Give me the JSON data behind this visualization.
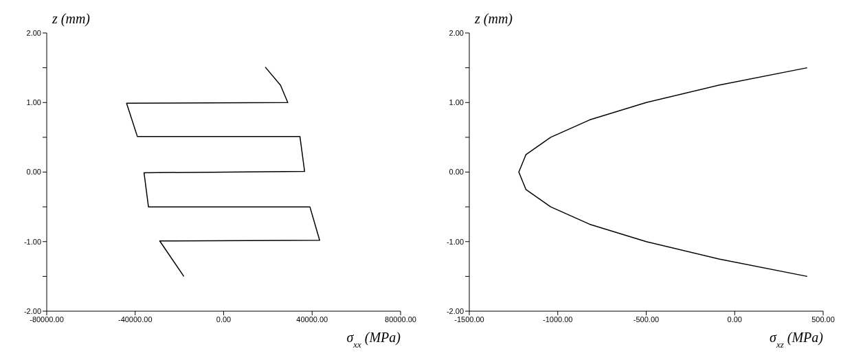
{
  "chart_data": [
    {
      "type": "line",
      "xlabel": "σ$_{xx}$ (MPa)",
      "ylabel": "z (mm)",
      "xlim": [
        -80000,
        80000
      ],
      "ylim": [
        -2,
        2
      ],
      "xticks": [
        {
          "value": -80000,
          "label": "-80000.00"
        },
        {
          "value": -40000,
          "label": "-40000.00"
        },
        {
          "value": 0,
          "label": "0.00"
        },
        {
          "value": 40000,
          "label": "40000.00"
        },
        {
          "value": 80000,
          "label": "80000.00"
        }
      ],
      "yticks": [
        {
          "value": -2,
          "label": "-2.00"
        },
        {
          "value": -1.5,
          "label": null
        },
        {
          "value": -1,
          "label": "-1.00"
        },
        {
          "value": -0.5,
          "label": null
        },
        {
          "value": 0,
          "label": "0.00"
        },
        {
          "value": 0.5,
          "label": null
        },
        {
          "value": 1,
          "label": "1.00"
        },
        {
          "value": 1.5,
          "label": null
        },
        {
          "value": 2,
          "label": "2.00"
        }
      ],
      "series": [
        {
          "color": "#000000",
          "x": [
            18800,
            25700,
            29000,
            -43900,
            -39000,
            34500,
            36600,
            -36000,
            -34000,
            39000,
            43400,
            -28900,
            -18000
          ],
          "values": [
            1.51,
            1.25,
            1.0,
            0.99,
            0.51,
            0.51,
            0.01,
            -0.01,
            -0.5,
            -0.5,
            -0.98,
            -0.99,
            -1.5
          ]
        }
      ]
    },
    {
      "type": "line",
      "xlabel": "σ$_{xz}$ (MPa)",
      "ylabel": "z (mm)",
      "xlim": [
        -1500,
        500
      ],
      "ylim": [
        -2,
        2
      ],
      "xticks": [
        {
          "value": -1500,
          "label": "-1500.00"
        },
        {
          "value": -1000,
          "label": "-1000.00"
        },
        {
          "value": -500,
          "label": "-500.00"
        },
        {
          "value": 0,
          "label": "0.00"
        },
        {
          "value": 500,
          "label": "500.00"
        }
      ],
      "yticks": [
        {
          "value": -2,
          "label": "-2.00"
        },
        {
          "value": -1.5,
          "label": null
        },
        {
          "value": -1,
          "label": "-1.00"
        },
        {
          "value": -0.5,
          "label": null
        },
        {
          "value": 0,
          "label": "0.00"
        },
        {
          "value": 0.5,
          "label": null
        },
        {
          "value": 1,
          "label": "1.00"
        },
        {
          "value": 1.5,
          "label": null
        },
        {
          "value": 2,
          "label": "2.00"
        }
      ],
      "series": [
        {
          "color": "#000000",
          "x": [
            410,
            -90,
            -500,
            -820,
            -1040,
            -1180,
            -1220,
            -1180,
            -1040,
            -820,
            -500,
            -90,
            410
          ],
          "values": [
            -1.5,
            -1.25,
            -1,
            -0.75,
            -0.5,
            -0.25,
            0,
            0.25,
            0.5,
            0.75,
            1,
            1.25,
            1.5
          ]
        }
      ]
    }
  ]
}
